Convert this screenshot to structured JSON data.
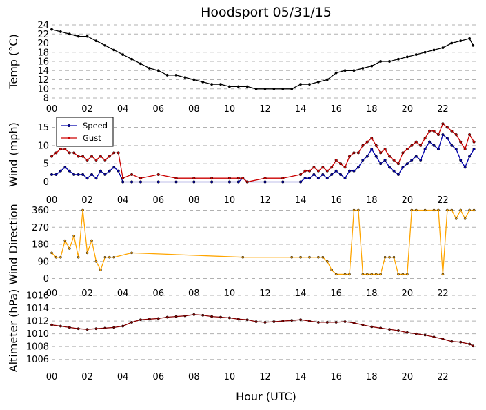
{
  "title": "Hoodsport 05/31/15",
  "xlabel": "Hour (UTC)",
  "x_tick_labels": [
    "00",
    "02",
    "04",
    "06",
    "08",
    "10",
    "12",
    "14",
    "16",
    "18",
    "20",
    "22"
  ],
  "colors": {
    "temp": "#000000",
    "speed": "#0000aa",
    "gust": "#cc0000",
    "direction": "#ffa500",
    "altimeter": "#880000",
    "marker_edge": "#000000",
    "grid": "#b0b0b0"
  },
  "chart_data": [
    {
      "type": "line",
      "ylabel": "Temp (°C)",
      "ylim": [
        8,
        24
      ],
      "y_ticks": [
        8,
        10,
        12,
        14,
        16,
        18,
        20,
        22,
        24
      ],
      "x_range_hours": [
        0,
        24
      ],
      "grid": true,
      "series": [
        {
          "x": [
            0,
            0.5,
            1,
            1.5,
            2,
            2.5,
            3,
            3.5,
            4,
            4.5,
            5,
            5.5,
            6,
            6.5,
            7,
            7.5,
            8,
            8.5,
            9,
            9.5,
            10,
            10.5,
            11,
            11.5,
            12,
            12.5,
            13,
            13.5,
            14,
            14.5,
            15,
            15.5,
            16,
            16.5,
            17,
            17.5,
            18,
            18.5,
            19,
            19.5,
            20,
            20.5,
            21,
            21.5,
            22,
            22.5,
            23,
            23.5,
            23.7
          ],
          "y": [
            23,
            22.5,
            22,
            21.5,
            21.5,
            20.5,
            19.5,
            18.5,
            17.5,
            16.5,
            15.5,
            14.5,
            14,
            13,
            13,
            12.5,
            12,
            11.5,
            11,
            11,
            10.5,
            10.5,
            10.5,
            10,
            10,
            10,
            10,
            10,
            11,
            11,
            11.5,
            12,
            13.5,
            14,
            14,
            14.5,
            15,
            16,
            16,
            16.5,
            17,
            17.5,
            18,
            18.5,
            19,
            20,
            20.5,
            21,
            19.5
          ]
        }
      ]
    },
    {
      "type": "line",
      "ylabel": "Wind (mph)",
      "ylim": [
        -2,
        17
      ],
      "y_ticks": [
        0,
        5,
        10,
        15
      ],
      "x_range_hours": [
        0,
        24
      ],
      "grid": true,
      "legend": "top-left",
      "series": [
        {
          "name": "Speed",
          "x": [
            0,
            0.25,
            0.5,
            0.75,
            1,
            1.25,
            1.5,
            1.75,
            2,
            2.25,
            2.5,
            2.75,
            3,
            3.25,
            3.5,
            3.75,
            4,
            4.5,
            5,
            6,
            7,
            8,
            9,
            10,
            10.5,
            10.75,
            11,
            12,
            13,
            14,
            14.25,
            14.5,
            14.75,
            15,
            15.25,
            15.5,
            15.75,
            16,
            16.25,
            16.5,
            16.75,
            17,
            17.25,
            17.5,
            17.75,
            18,
            18.25,
            18.5,
            18.75,
            19,
            19.25,
            19.5,
            19.75,
            20,
            20.25,
            20.5,
            20.75,
            21,
            21.25,
            21.5,
            21.75,
            22,
            22.25,
            22.5,
            22.75,
            23,
            23.25,
            23.5,
            23.75
          ],
          "y": [
            2,
            2,
            3,
            4,
            3,
            2,
            2,
            2,
            1,
            2,
            1,
            3,
            2,
            3,
            4,
            3,
            0,
            0,
            0,
            0,
            0,
            0,
            0,
            0,
            0,
            1,
            0,
            0,
            0,
            0,
            1,
            1,
            2,
            1,
            2,
            1,
            2,
            3,
            2,
            1,
            3,
            3,
            4,
            6,
            7,
            9,
            7,
            5,
            6,
            4,
            3,
            2,
            4,
            5,
            6,
            7,
            6,
            9,
            11,
            10,
            9,
            13,
            12,
            10,
            9,
            6,
            4,
            7,
            9
          ]
        },
        {
          "name": "Gust",
          "x": [
            0,
            0.25,
            0.5,
            0.75,
            1,
            1.25,
            1.5,
            1.75,
            2,
            2.25,
            2.5,
            2.75,
            3,
            3.25,
            3.5,
            3.75,
            4,
            4.5,
            5,
            6,
            7,
            8,
            9,
            10,
            10.5,
            10.75,
            11,
            12,
            13,
            14,
            14.25,
            14.5,
            14.75,
            15,
            15.25,
            15.5,
            15.75,
            16,
            16.25,
            16.5,
            16.75,
            17,
            17.25,
            17.5,
            17.75,
            18,
            18.25,
            18.5,
            18.75,
            19,
            19.25,
            19.5,
            19.75,
            20,
            20.25,
            20.5,
            20.75,
            21,
            21.25,
            21.5,
            21.75,
            22,
            22.25,
            22.5,
            22.75,
            23,
            23.25,
            23.5,
            23.75
          ],
          "y": [
            7,
            8,
            9,
            9,
            8,
            8,
            7,
            7,
            6,
            7,
            6,
            7,
            6,
            7,
            8,
            8,
            1,
            2,
            1,
            2,
            1,
            1,
            1,
            1,
            1,
            1,
            0,
            1,
            1,
            2,
            3,
            3,
            4,
            3,
            4,
            3,
            4,
            6,
            5,
            4,
            7,
            8,
            8,
            10,
            11,
            12,
            10,
            8,
            9,
            7,
            6,
            5,
            8,
            9,
            10,
            11,
            10,
            12,
            14,
            14,
            13,
            16,
            15,
            14,
            13,
            11,
            9,
            13,
            11
          ]
        }
      ]
    },
    {
      "type": "line",
      "ylabel": "Wind Direction",
      "ylim": [
        -20,
        380
      ],
      "y_ticks": [
        0,
        90,
        180,
        270,
        360
      ],
      "x_range_hours": [
        0,
        24
      ],
      "grid": true,
      "series": [
        {
          "x": [
            0,
            0.25,
            0.5,
            0.75,
            1,
            1.25,
            1.5,
            1.75,
            2,
            2.25,
            2.5,
            2.75,
            3,
            3.25,
            3.5,
            4.5,
            10.75,
            13.5,
            14,
            14.5,
            15,
            15.25,
            15.5,
            15.75,
            16,
            16.5,
            16.75,
            17,
            17.25,
            17.5,
            17.75,
            18,
            18.25,
            18.5,
            18.75,
            19,
            19.25,
            19.5,
            19.75,
            20,
            20.25,
            20.5,
            21,
            21.5,
            21.75,
            22,
            22.25,
            22.5,
            22.75,
            23,
            23.25,
            23.5,
            23.75
          ],
          "y": [
            135,
            112,
            112,
            200,
            158,
            225,
            112,
            360,
            135,
            200,
            90,
            45,
            112,
            112,
            112,
            135,
            112,
            112,
            112,
            112,
            112,
            112,
            90,
            45,
            22,
            22,
            22,
            360,
            360,
            22,
            22,
            22,
            22,
            22,
            112,
            112,
            112,
            22,
            22,
            22,
            360,
            360,
            360,
            360,
            360,
            22,
            360,
            360,
            315,
            360,
            315,
            360,
            360
          ]
        }
      ]
    },
    {
      "type": "line",
      "ylabel": "Altimeter (hPa)",
      "ylim": [
        1005,
        1016
      ],
      "y_ticks": [
        1006,
        1008,
        1010,
        1012,
        1014,
        1016
      ],
      "x_range_hours": [
        0,
        24
      ],
      "grid": true,
      "series": [
        {
          "x": [
            0,
            0.5,
            1,
            1.5,
            2,
            2.5,
            3,
            3.5,
            4,
            4.5,
            5,
            5.5,
            6,
            6.5,
            7,
            7.5,
            8,
            8.5,
            9,
            9.5,
            10,
            10.5,
            11,
            11.5,
            12,
            12.5,
            13,
            13.5,
            14,
            14.5,
            15,
            15.5,
            16,
            16.5,
            17,
            17.5,
            18,
            18.5,
            19,
            19.5,
            20,
            20.5,
            21,
            21.5,
            22,
            22.5,
            23,
            23.5,
            23.7
          ],
          "y": [
            1011.4,
            1011.2,
            1011,
            1010.8,
            1010.7,
            1010.8,
            1010.9,
            1011,
            1011.2,
            1011.8,
            1012.2,
            1012.3,
            1012.4,
            1012.6,
            1012.7,
            1012.8,
            1013,
            1012.9,
            1012.7,
            1012.6,
            1012.5,
            1012.3,
            1012.2,
            1011.9,
            1011.8,
            1011.9,
            1012,
            1012.1,
            1012.2,
            1012,
            1011.8,
            1011.8,
            1011.8,
            1011.9,
            1011.7,
            1011.4,
            1011.1,
            1010.9,
            1010.7,
            1010.5,
            1010.2,
            1010,
            1009.8,
            1009.5,
            1009.2,
            1008.8,
            1008.7,
            1008.4,
            1008.1
          ]
        }
      ]
    }
  ]
}
